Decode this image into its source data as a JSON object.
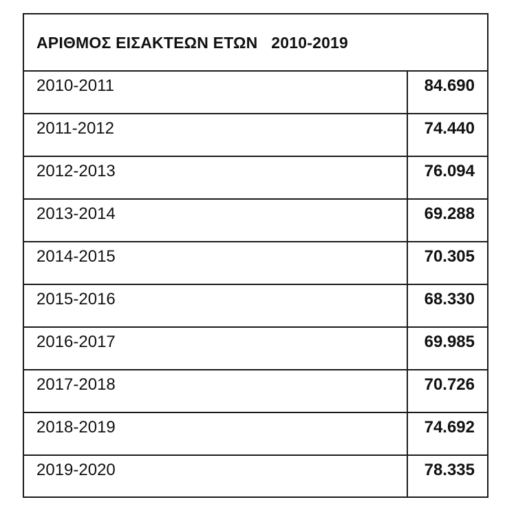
{
  "table": {
    "title": "ΑΡΙΘΜΟΣ ΕΙΣΑΚΤΕΩΝ ΕΤΩΝ   2010-2019",
    "rows": [
      {
        "year": "2010-2011",
        "value": "84.690"
      },
      {
        "year": "2011-2012",
        "value": "74.440"
      },
      {
        "year": "2012-2013",
        "value": "76.094"
      },
      {
        "year": "2013-2014",
        "value": "69.288"
      },
      {
        "year": "2014-2015",
        "value": "70.305"
      },
      {
        "year": "2015-2016",
        "value": "68.330"
      },
      {
        "year": "2016-2017",
        "value": "69.985"
      },
      {
        "year": "2017-2018",
        "value": "70.726"
      },
      {
        "year": "2018-2019",
        "value": "74.692"
      },
      {
        "year": "2019-2020",
        "value": "78.335"
      }
    ]
  }
}
